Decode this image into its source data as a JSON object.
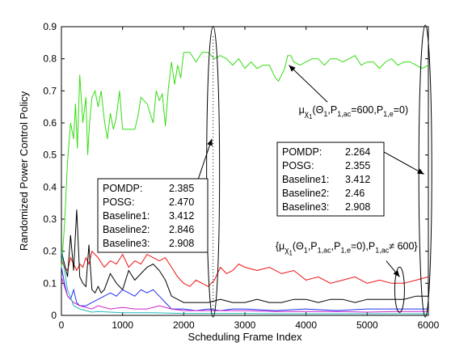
{
  "chart_data": {
    "type": "line",
    "title": "",
    "xlabel": "Scheduling Frame Index",
    "ylabel": "Randomized Power Control Policy",
    "xlim": [
      0,
      6000
    ],
    "ylim": [
      0,
      0.9
    ],
    "xticks": [
      0,
      1000,
      2000,
      3000,
      4000,
      5000,
      6000
    ],
    "yticks": [
      0,
      0.1,
      0.2,
      0.3,
      0.4,
      0.5,
      0.6,
      0.7,
      0.8,
      0.9
    ],
    "grid": false,
    "legend": "none",
    "series": [
      {
        "color": "#33dd11",
        "x": [
          0,
          50,
          100,
          150,
          200,
          230,
          260,
          300,
          350,
          400,
          430,
          460,
          500,
          550,
          600,
          650,
          700,
          750,
          800,
          850,
          900,
          950,
          1000,
          1100,
          1200,
          1250,
          1300,
          1400,
          1500,
          1550,
          1600,
          1650,
          1700,
          1750,
          1800,
          1850,
          1900,
          1950,
          2000,
          2100,
          2200,
          2300,
          2400,
          2500,
          2600,
          2700,
          2800,
          2900,
          3000,
          3100,
          3200,
          3300,
          3400,
          3500,
          3550,
          3600,
          3650,
          3700,
          3750,
          3800,
          3900,
          4000,
          4100,
          4200,
          4300,
          4400,
          4500,
          4600,
          4700,
          4800,
          4900,
          5000,
          5100,
          5200,
          5300,
          5400,
          5500,
          5600,
          5700,
          5800,
          5900,
          6000
        ],
        "y": [
          0.15,
          0.28,
          0.48,
          0.6,
          0.55,
          0.66,
          0.52,
          0.75,
          0.6,
          0.68,
          0.5,
          0.6,
          0.68,
          0.7,
          0.65,
          0.7,
          0.61,
          0.55,
          0.63,
          0.58,
          0.62,
          0.7,
          0.58,
          0.58,
          0.58,
          0.62,
          0.68,
          0.66,
          0.6,
          0.7,
          0.67,
          0.69,
          0.59,
          0.71,
          0.79,
          0.72,
          0.78,
          0.74,
          0.82,
          0.82,
          0.79,
          0.82,
          0.82,
          0.8,
          0.81,
          0.8,
          0.78,
          0.8,
          0.77,
          0.79,
          0.77,
          0.78,
          0.78,
          0.74,
          0.73,
          0.75,
          0.77,
          0.81,
          0.81,
          0.79,
          0.78,
          0.79,
          0.8,
          0.8,
          0.78,
          0.8,
          0.8,
          0.79,
          0.8,
          0.81,
          0.78,
          0.79,
          0.79,
          0.77,
          0.79,
          0.8,
          0.78,
          0.79,
          0.79,
          0.78,
          0.77,
          0.78
        ]
      },
      {
        "color": "#ee1111",
        "x": [
          0,
          50,
          100,
          150,
          200,
          250,
          300,
          350,
          400,
          450,
          500,
          600,
          700,
          750,
          800,
          900,
          1000,
          1100,
          1200,
          1300,
          1400,
          1500,
          1600,
          1700,
          1800,
          1900,
          2000,
          2100,
          2200,
          2300,
          2400,
          2500,
          2600,
          2700,
          2800,
          2900,
          3000,
          3200,
          3400,
          3600,
          3800,
          4000,
          4200,
          4400,
          4600,
          4800,
          5000,
          5200,
          5400,
          5600,
          5800,
          6000
        ],
        "y": [
          0.17,
          0.15,
          0.14,
          0.18,
          0.16,
          0.14,
          0.16,
          0.15,
          0.18,
          0.16,
          0.2,
          0.18,
          0.15,
          0.16,
          0.17,
          0.16,
          0.19,
          0.15,
          0.17,
          0.16,
          0.19,
          0.18,
          0.17,
          0.18,
          0.15,
          0.12,
          0.1,
          0.09,
          0.11,
          0.1,
          0.09,
          0.11,
          0.15,
          0.13,
          0.14,
          0.16,
          0.15,
          0.14,
          0.15,
          0.13,
          0.14,
          0.11,
          0.12,
          0.1,
          0.11,
          0.12,
          0.1,
          0.11,
          0.1,
          0.1,
          0.11,
          0.12
        ]
      },
      {
        "color": "#000000",
        "x": [
          0,
          50,
          100,
          150,
          200,
          250,
          300,
          350,
          400,
          450,
          500,
          550,
          600,
          650,
          700,
          800,
          900,
          1000,
          1100,
          1200,
          1300,
          1400,
          1500,
          1600,
          1700,
          1800,
          1900,
          2000,
          2200,
          2400,
          2600,
          2800,
          3000,
          3200,
          3400,
          3600,
          3800,
          4000,
          4200,
          4400,
          4600,
          4800,
          5000,
          5200,
          5400,
          5600,
          5800,
          6000
        ],
        "y": [
          0.2,
          0.16,
          0.12,
          0.25,
          0.14,
          0.33,
          0.12,
          0.1,
          0.09,
          0.22,
          0.08,
          0.07,
          0.09,
          0.07,
          0.08,
          0.13,
          0.1,
          0.08,
          0.14,
          0.11,
          0.13,
          0.15,
          0.16,
          0.14,
          0.11,
          0.06,
          0.05,
          0.04,
          0.04,
          0.04,
          0.05,
          0.04,
          0.04,
          0.05,
          0.04,
          0.04,
          0.05,
          0.05,
          0.04,
          0.05,
          0.05,
          0.04,
          0.05,
          0.05,
          0.05,
          0.05,
          0.06,
          0.06
        ]
      },
      {
        "color": "#2233ee",
        "x": [
          0,
          50,
          100,
          150,
          200,
          250,
          300,
          400,
          500,
          600,
          700,
          800,
          900,
          1000,
          1100,
          1200,
          1300,
          1400,
          1500,
          1600,
          1700,
          1800,
          2000,
          2200,
          2400,
          2600,
          2800,
          3000,
          3500,
          4000,
          4500,
          5000,
          5500,
          6000
        ],
        "y": [
          0.15,
          0.1,
          0.06,
          0.05,
          0.08,
          0.04,
          0.03,
          0.03,
          0.04,
          0.05,
          0.06,
          0.07,
          0.06,
          0.08,
          0.07,
          0.06,
          0.08,
          0.07,
          0.08,
          0.06,
          0.04,
          0.02,
          0.02,
          0.015,
          0.02,
          0.015,
          0.02,
          0.02,
          0.015,
          0.02,
          0.015,
          0.02,
          0.02,
          0.02
        ]
      },
      {
        "color": "#cc22cc",
        "x": [
          0,
          100,
          200,
          300,
          400,
          500,
          600,
          800,
          1000,
          1200,
          1400,
          1600,
          1800,
          2000,
          2500,
          3000,
          3500,
          4000,
          4500,
          5000,
          5500,
          6000
        ],
        "y": [
          0.12,
          0.06,
          0.04,
          0.03,
          0.025,
          0.02,
          0.03,
          0.02,
          0.025,
          0.02,
          0.02,
          0.03,
          0.02,
          0.015,
          0.015,
          0.015,
          0.012,
          0.012,
          0.012,
          0.01,
          0.012,
          0.012
        ]
      },
      {
        "color": "#22bbbb",
        "x": [
          0,
          100,
          200,
          300,
          400,
          500,
          600,
          800,
          1000,
          1500,
          2000,
          2500,
          3000,
          3500,
          4000,
          4500,
          5000,
          5500,
          6000
        ],
        "y": [
          0.2,
          0.08,
          0.03,
          0.02,
          0.015,
          0.01,
          0.012,
          0.01,
          0.008,
          0.008,
          0.006,
          0.006,
          0.006,
          0.005,
          0.005,
          0.005,
          0.005,
          0.005,
          0.005
        ]
      }
    ],
    "annotations": {
      "green_label": {
        "main": "μ",
        "sub1": "χ",
        "subsub": "1",
        "body": "(Θ",
        "b1": "1",
        "comma1": ",P",
        "b2": "1,ac",
        "eq1": "=600,P",
        "b3": "1,e",
        "tail": "=0)"
      },
      "others_label": {
        "open": "{μ",
        "sub1": "χ",
        "subsub": "1",
        "body": "(Θ",
        "b1": "1",
        "comma1": ",P",
        "b2": "1,ac",
        "comma2": ",P",
        "b3": "1,e",
        "eq": "=0),P",
        "b4": "1,ac",
        "tail": "≠ 600}"
      },
      "box_left": [
        {
          "name": "POMDP:",
          "value": "2.385"
        },
        {
          "name": "POSG:",
          "value": "2.470"
        },
        {
          "name": "Baseline1:",
          "value": "3.412"
        },
        {
          "name": "Baseline2:",
          "value": "2.846"
        },
        {
          "name": "Baseline3:",
          "value": "2.908"
        }
      ],
      "box_right": [
        {
          "name": "POMDP:",
          "value": "2.264"
        },
        {
          "name": "POSG:",
          "value": "2.355"
        },
        {
          "name": "Baseline1:",
          "value": "3.412"
        },
        {
          "name": "Baseline2:",
          "value": "2.46"
        },
        {
          "name": "Baseline3:",
          "value": "2.908"
        }
      ]
    }
  }
}
